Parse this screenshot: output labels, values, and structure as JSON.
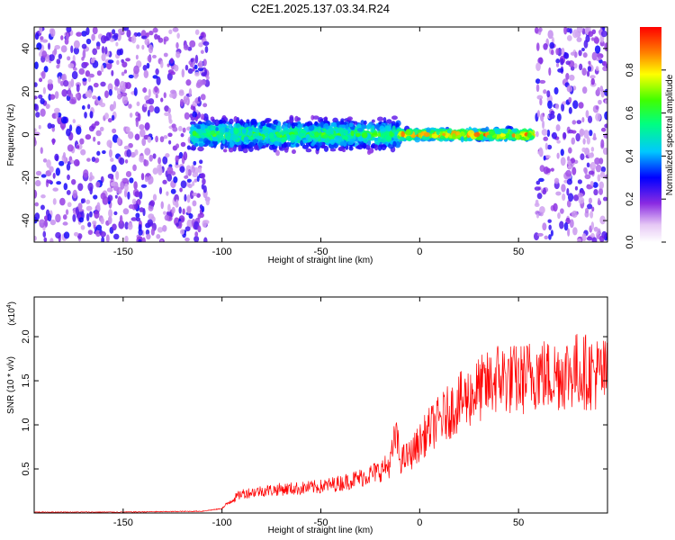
{
  "title": "C2E1.2025.137.03.34.R24",
  "chart_data": [
    {
      "type": "heatmap",
      "xlabel": "Height of straight line (km)",
      "ylabel": "Frequency (Hz)",
      "xlim": [
        -195,
        95
      ],
      "ylim": [
        -50,
        50
      ],
      "xticks": [
        -150,
        -100,
        -50,
        0,
        50
      ],
      "yticks": [
        -40,
        -20,
        0,
        20,
        40
      ],
      "colorbar": {
        "label": "Normalized spectral amplitude",
        "range": [
          0.0,
          1.0
        ],
        "ticks": [
          0.0,
          0.2,
          0.4,
          0.6,
          0.8
        ],
        "colormap": "white-purple-blue-cyan-green-yellow-red"
      },
      "regions": [
        {
          "x_range": [
            -195,
            -107
          ],
          "freq_range": [
            -50,
            50
          ],
          "amplitude": "low",
          "description": "broadband noise"
        },
        {
          "x_range": [
            -115,
            -10
          ],
          "freq_center": 0,
          "freq_halfwidth": 6,
          "amplitude": "mid",
          "description": "signal band"
        },
        {
          "x_range": [
            -10,
            57
          ],
          "freq_center": 0,
          "freq_halfwidth": 2,
          "amplitude": "high",
          "description": "narrow signal line"
        },
        {
          "x_range": [
            59,
            95
          ],
          "freq_range": [
            -50,
            50
          ],
          "amplitude": "low",
          "description": "broadband noise"
        }
      ]
    },
    {
      "type": "line",
      "xlabel": "Height of straight line (km)",
      "ylabel": "SNR (10 * v/v)",
      "y_scale_label": "(x10",
      "y_scale_exp": "4",
      "y_scale_close": ")",
      "xlim": [
        -195,
        95
      ],
      "ylim": [
        0,
        2.45
      ],
      "xticks": [
        -150,
        -100,
        -50,
        0,
        50
      ],
      "yticks": [
        0.5,
        1.0,
        1.5,
        2.0
      ],
      "series": [
        {
          "color": "#ff0000",
          "x": [
            -195,
            -150,
            -110,
            -100,
            -95,
            -90,
            -80,
            -70,
            -60,
            -50,
            -40,
            -30,
            -20,
            -15,
            -12,
            -10,
            -5,
            0,
            5,
            10,
            15,
            20,
            25,
            30,
            35,
            40,
            45,
            50,
            55,
            60,
            65,
            70,
            75,
            80,
            85,
            90,
            95
          ],
          "y": [
            0.01,
            0.01,
            0.02,
            0.05,
            0.15,
            0.22,
            0.25,
            0.27,
            0.28,
            0.3,
            0.34,
            0.4,
            0.48,
            0.55,
            0.9,
            0.6,
            0.65,
            0.8,
            0.95,
            1.05,
            1.15,
            1.25,
            1.32,
            1.4,
            1.45,
            1.55,
            1.52,
            1.5,
            1.55,
            1.6,
            1.55,
            1.58,
            1.6,
            1.62,
            1.6,
            1.58,
            1.56
          ]
        }
      ]
    }
  ]
}
